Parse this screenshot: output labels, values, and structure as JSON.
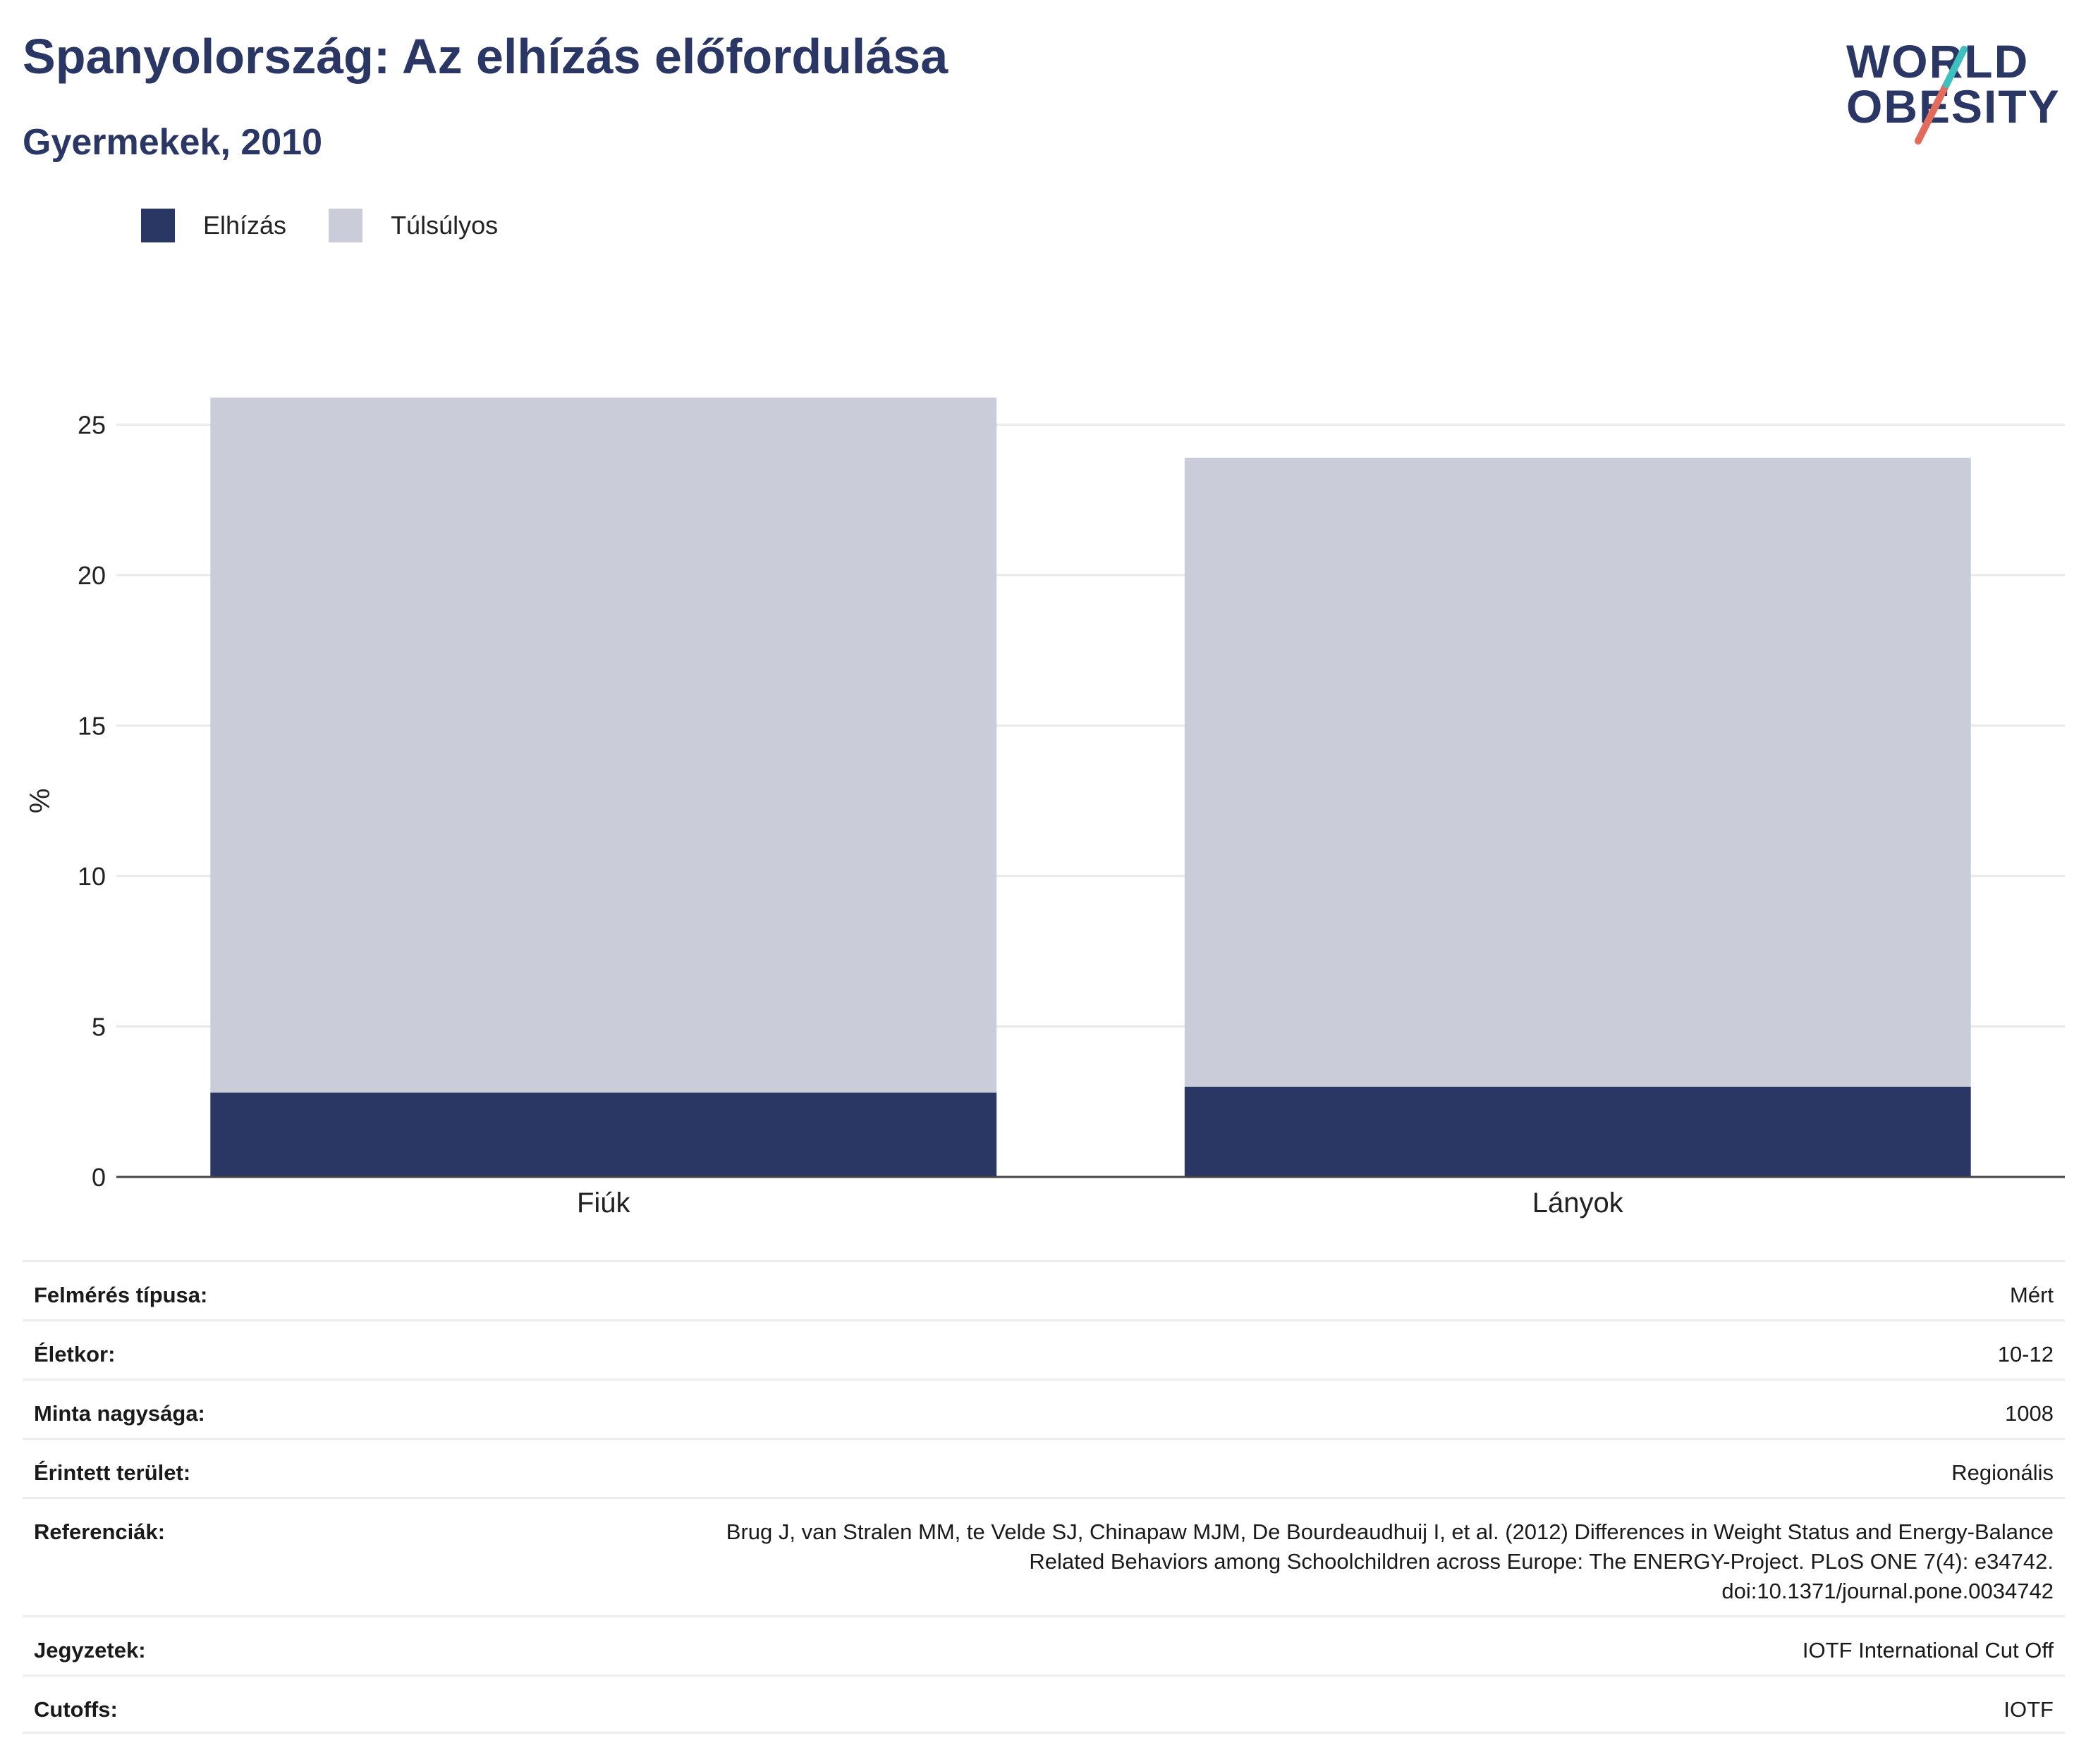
{
  "header": {
    "title": "Spanyolország: Az elhízás előfordulása",
    "subtitle": "Gyermekek, 2010"
  },
  "logo": {
    "line1": "WORLD",
    "line2": "OBESITY"
  },
  "colors": {
    "obesity": "#2a3663",
    "overweight": "#cacdd9",
    "grid": "#e9e9e9",
    "axis": "#444444",
    "logo_teal": "#3fbfbf",
    "logo_red": "#e26b5b"
  },
  "chart_data": {
    "type": "bar",
    "stacked": true,
    "categories": [
      "Fiúk",
      "Lányok"
    ],
    "series": [
      {
        "name": "Elhízás",
        "values": [
          2.8,
          3.0
        ]
      },
      {
        "name": "Túlsúlyos",
        "values": [
          23.1,
          20.9
        ]
      }
    ],
    "ylabel": "%",
    "xlabel": "",
    "ylim": [
      0,
      26
    ],
    "yticks": [
      0,
      5,
      10,
      15,
      20,
      25
    ],
    "grid": true,
    "legend_position": "top-left"
  },
  "table": {
    "rows": [
      {
        "label": "Felmérés típusa:",
        "value": "Mért"
      },
      {
        "label": "Életkor:",
        "value": "10-12"
      },
      {
        "label": "Minta nagysága:",
        "value": "1008"
      },
      {
        "label": "Érintett terület:",
        "value": "Regionális"
      },
      {
        "label": "Referenciák:",
        "value": "Brug J, van Stralen MM, te Velde SJ, Chinapaw MJM, De Bourdeaudhuij I, et al. (2012) Differences in Weight Status and Energy-Balance\nRelated Behaviors among Schoolchildren across Europe: The ENERGY-Project. PLoS ONE 7(4): e34742.\ndoi:10.1371/journal.pone.0034742"
      },
      {
        "label": "Jegyzetek:",
        "value": "IOTF International Cut Off"
      },
      {
        "label": "Cutoffs:",
        "value": "IOTF"
      }
    ]
  }
}
